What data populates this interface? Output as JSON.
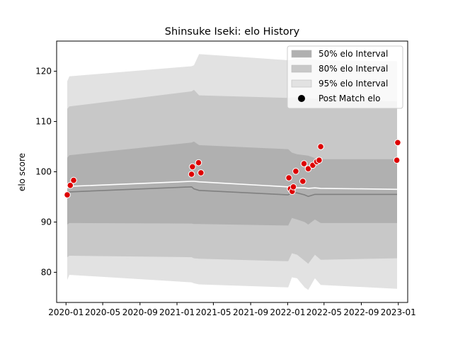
{
  "chart_data": {
    "type": "area",
    "title": "Shinsuke Iseki: elo History",
    "xlabel": "",
    "ylabel": "elo score",
    "xlim": [
      "2019-12-01",
      "2023-02-01"
    ],
    "ylim": [
      74,
      126
    ],
    "x_ticks": [
      "2020-01",
      "2020-05",
      "2020-09",
      "2021-01",
      "2021-05",
      "2021-09",
      "2022-01",
      "2022-05",
      "2022-09",
      "2023-01"
    ],
    "y_ticks": [
      80,
      90,
      100,
      110,
      120
    ],
    "legend_position": "top-right",
    "legend": [
      "50% elo Interval",
      "80% elo Interval",
      "95% elo Interval",
      "Post Match elo"
    ],
    "colors": {
      "band_50": "#b0b0b0",
      "band_80": "#c8c8c8",
      "band_95": "#e2e2e2",
      "median_line": "#808080",
      "mean_line": "#ffffff",
      "points": "#dd0000"
    },
    "band_x": [
      "2020-01-05",
      "2020-01-12",
      "2021-02-18",
      "2021-02-26",
      "2021-03-15",
      "2022-01-03",
      "2022-01-15",
      "2022-02-01",
      "2022-02-26",
      "2022-03-10",
      "2022-04-01",
      "2022-04-20",
      "2022-12-28"
    ],
    "band_95_upper": [
      118,
      119,
      121,
      121.2,
      123.4,
      122.2,
      122.3,
      122.5,
      122.5,
      122.4,
      122.3,
      122.2,
      122
    ],
    "band_95_lower": [
      78.5,
      79.5,
      78,
      77.8,
      77.6,
      77,
      79,
      78.8,
      77,
      76.5,
      78.8,
      77.5,
      76.7
    ],
    "band_80_upper": [
      112.5,
      113,
      116,
      116.3,
      115.2,
      114.7,
      114.8,
      114.8,
      114.7,
      114.6,
      114.5,
      114.5,
      114
    ],
    "band_80_lower": [
      83,
      83.3,
      83,
      82.8,
      82.7,
      82.2,
      83.8,
      83.5,
      82.3,
      81.7,
      83.5,
      82.5,
      82.8
    ],
    "band_50_upper": [
      102.8,
      103.3,
      105.8,
      106,
      105.3,
      104.5,
      103.8,
      103.5,
      103.3,
      103.2,
      102.7,
      102.5,
      102.5
    ],
    "band_50_lower": [
      89.5,
      89.8,
      89.7,
      89.6,
      89.6,
      89.3,
      90.8,
      90.5,
      90,
      89.5,
      90.5,
      89.8,
      89.8
    ],
    "median_line": [
      95.8,
      96,
      97,
      96.6,
      96.3,
      95.4,
      95.9,
      95.8,
      95.4,
      95.1,
      95.5,
      95.5,
      95.5
    ],
    "mean_line": [
      96.8,
      97.1,
      98.1,
      98.1,
      98,
      97,
      97,
      96.8,
      96.8,
      96.7,
      96.8,
      96.7,
      96.5
    ],
    "post_match": {
      "x": [
        "2020-01-05",
        "2020-01-15",
        "2020-01-26",
        "2021-02-18",
        "2021-02-21",
        "2021-03-13",
        "2021-03-21",
        "2022-01-05",
        "2022-01-10",
        "2022-01-16",
        "2022-01-20",
        "2022-01-28",
        "2022-02-20",
        "2022-02-24",
        "2022-03-10",
        "2022-03-25",
        "2022-04-07",
        "2022-04-15",
        "2022-04-20",
        "2022-12-27",
        "2022-12-30"
      ],
      "y": [
        95.4,
        97.3,
        98.3,
        99.5,
        101,
        101.8,
        99.8,
        98.8,
        96.6,
        96.1,
        97,
        100.1,
        98.1,
        101.6,
        100.6,
        101.3,
        102,
        102.3,
        105,
        102.3,
        105.8
      ]
    }
  }
}
